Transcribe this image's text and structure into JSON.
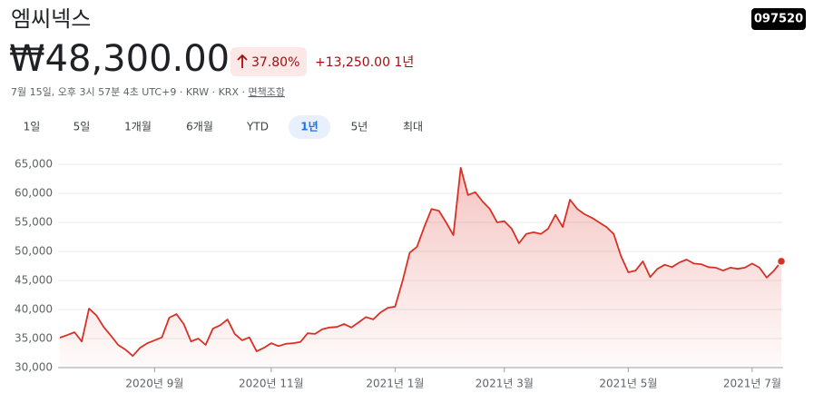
{
  "header": {
    "name": "엠씨넥스",
    "ticker": "097520",
    "price": "₩48,300.00",
    "change_pct": "37.80%",
    "change_abs": "+13,250.00 1년",
    "subtitle": "7월 15일, 오후 3시 57분 4초 UTC+9 · KRW · KRX · ",
    "disclaimer": "면책조항"
  },
  "tabs": [
    "1일",
    "5일",
    "1개월",
    "6개월",
    "YTD",
    "1년",
    "5년",
    "최대"
  ],
  "selected_tab_index": 5,
  "chart_data": {
    "type": "line",
    "categories": [
      null,
      null,
      null,
      null,
      null,
      null,
      null,
      null,
      null,
      null,
      null,
      null,
      null,
      "2020년 9월",
      null,
      null,
      null,
      null,
      null,
      null,
      null,
      null,
      null,
      null,
      null,
      null,
      null,
      null,
      null,
      "2020년 11월",
      null,
      null,
      null,
      null,
      null,
      null,
      null,
      null,
      null,
      null,
      null,
      null,
      null,
      null,
      null,
      null,
      "2021년 1월",
      null,
      null,
      null,
      null,
      null,
      null,
      null,
      null,
      null,
      null,
      null,
      null,
      null,
      null,
      "2021년 3월",
      null,
      null,
      null,
      null,
      null,
      null,
      null,
      null,
      null,
      null,
      null,
      null,
      null,
      null,
      null,
      null,
      "2021년 5월",
      null,
      null,
      null,
      null,
      null,
      null,
      null,
      null,
      null,
      null,
      null,
      null,
      null,
      null,
      null,
      null,
      "2021년 7월",
      null,
      null,
      null,
      null
    ],
    "values": [
      35150,
      35600,
      36100,
      34500,
      40150,
      39000,
      37000,
      35500,
      33900,
      33100,
      32000,
      33400,
      34200,
      34700,
      35200,
      38600,
      39200,
      37500,
      34500,
      35000,
      33900,
      36700,
      37300,
      38300,
      35800,
      34700,
      35200,
      32800,
      33400,
      34200,
      33700,
      34100,
      34200,
      34400,
      35900,
      35800,
      36600,
      36900,
      37000,
      37500,
      36900,
      37800,
      38700,
      38300,
      39500,
      40300,
      40500,
      44800,
      49800,
      50800,
      54200,
      57300,
      57000,
      55000,
      52800,
      64400,
      59700,
      60200,
      58600,
      57300,
      55000,
      55200,
      53900,
      51400,
      53000,
      53300,
      53000,
      53900,
      56300,
      54200,
      58900,
      57300,
      56400,
      55800,
      55000,
      54200,
      53000,
      49200,
      46400,
      46700,
      48300,
      45600,
      47000,
      47700,
      47300,
      48100,
      48600,
      47900,
      47800,
      47300,
      47200,
      46700,
      47200,
      47000,
      47200,
      47900,
      47200,
      45500,
      46700,
      48300
    ],
    "color": "#d93025",
    "ylim": [
      30000,
      65000
    ],
    "yticks": [
      {
        "value": 30000,
        "label": "30,000"
      },
      {
        "value": 35000,
        "label": "35,000"
      },
      {
        "value": 40000,
        "label": "40,000"
      },
      {
        "value": 45000,
        "label": "45,000"
      },
      {
        "value": 50000,
        "label": "50,000"
      },
      {
        "value": 55000,
        "label": "55,000"
      },
      {
        "value": 60000,
        "label": "60,000"
      },
      {
        "value": 65000,
        "label": "65,000"
      }
    ],
    "grid": true
  }
}
